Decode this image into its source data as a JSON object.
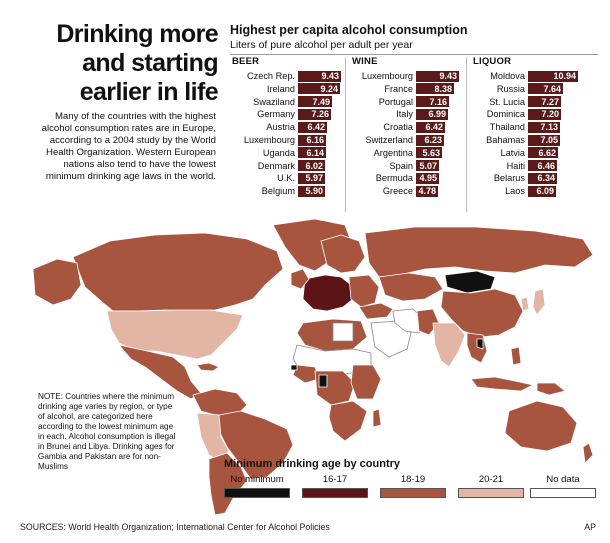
{
  "headline": [
    "Drinking more",
    "and starting",
    "earlier in life"
  ],
  "intro": "Many of the countries with the highest alcohol consumption rates are in Europe, according to a 2004 study by the World Health Organization. Western European nations also tend to have the lowest minimum drinking age laws in the world.",
  "colors": {
    "bar": "#5a1a1a",
    "no_minimum": "#111111",
    "age_16_17": "#5c1416",
    "age_18_19": "#a8553f",
    "age_20_21": "#e3b5a4",
    "no_data": "#ffffff"
  },
  "chart_data": [
    {
      "type": "bar",
      "title": "Highest per capita alcohol consumption",
      "subtitle": "Liters of pure alcohol per adult per year",
      "series": [
        {
          "name": "BEER",
          "categories": [
            "Czech Rep.",
            "Ireland",
            "Swaziland",
            "Germany",
            "Austria",
            "Luxembourg",
            "Uganda",
            "Denmark",
            "U.K.",
            "Belgium"
          ],
          "values": [
            9.43,
            9.24,
            7.49,
            7.26,
            6.42,
            6.16,
            6.14,
            6.02,
            5.97,
            5.9
          ],
          "labels": [
            "9.43",
            "9.24",
            "7.49",
            "7.26",
            "6.42",
            "6.16",
            "6.14",
            "6.02",
            "5.97",
            "5.90"
          ]
        },
        {
          "name": "WINE",
          "categories": [
            "Luxembourg",
            "France",
            "Portugal",
            "Italy",
            "Croatia",
            "Switzerland",
            "Argentina",
            "Spain",
            "Bermuda",
            "Greece"
          ],
          "values": [
            9.43,
            8.38,
            7.16,
            6.99,
            6.42,
            6.23,
            5.63,
            5.07,
            4.95,
            4.78
          ],
          "labels": [
            "9.43",
            "8.38",
            "7.16",
            "6.99",
            "6.42",
            "6.23",
            "5.63",
            "5.07",
            "4.95",
            "4.78"
          ]
        },
        {
          "name": "LIQUOR",
          "categories": [
            "Moldova",
            "Russia",
            "St. Lucia",
            "Dominica",
            "Thailand",
            "Bahamas",
            "Latvia",
            "Haiti",
            "Belarus",
            "Laos"
          ],
          "values": [
            10.94,
            7.64,
            7.27,
            7.2,
            7.13,
            7.05,
            6.62,
            6.46,
            6.34,
            6.09
          ],
          "labels": [
            "10.94",
            "7.64",
            "7.27",
            "7.20",
            "7.13",
            "7.05",
            "6.62",
            "6.46",
            "6.34",
            "6.09"
          ]
        }
      ]
    },
    {
      "type": "heatmap",
      "title": "Minimum drinking age by country",
      "legend": [
        {
          "label": "No minimum",
          "color": "#111111"
        },
        {
          "label": "16-17",
          "color": "#5c1416"
        },
        {
          "label": "18-19",
          "color": "#a8553f"
        },
        {
          "label": "20-21",
          "color": "#e3b5a4"
        },
        {
          "label": "No data",
          "color": "#ffffff"
        }
      ]
    }
  ],
  "note": "NOTE: Countries where the minimum drinking age varies by region, or type of alcohol, are categorized here according to the lowest minimum age in each. Alcohol consumption is illegal in Brunei and Libya. Drinking ages for Gambia and Pakistan are for non-Muslims",
  "sources": "SOURCES: World Health Organization; International Center for Alcohol Policies",
  "credit": "AP"
}
